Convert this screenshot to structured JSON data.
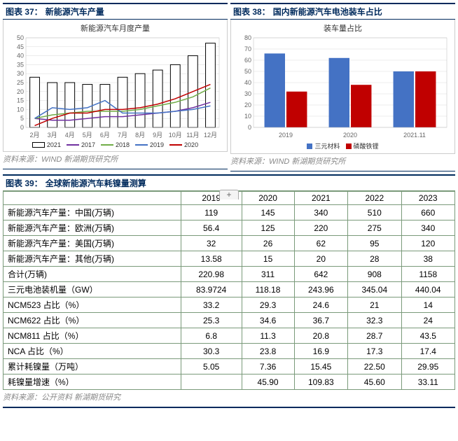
{
  "chart37": {
    "header_prefix": "图表 37：",
    "header_title": "新能源汽车产量",
    "chart_title": "新能源汽车月度产量",
    "source": "资料来源：WIND 新湖期货研究所",
    "type": "bar+line",
    "background_color": "#ffffff",
    "grid_color": "#d9d9d9",
    "ylim": [
      0,
      50
    ],
    "ytick_step": 5,
    "label_fontsize": 9,
    "categories": [
      "2月",
      "3月",
      "4月",
      "5月",
      "6月",
      "7月",
      "8月",
      "9月",
      "10月",
      "11月",
      "12月"
    ],
    "bar_series": {
      "name": "2021",
      "color": "#ffffff",
      "border": "#000000",
      "values": [
        28,
        25,
        25,
        24,
        24,
        28,
        30,
        32,
        35,
        40,
        47
      ]
    },
    "line_series": [
      {
        "name": "2017",
        "color": "#7030a0",
        "width": 1.5,
        "values": [
          5,
          4,
          4,
          5,
          6,
          6,
          7,
          8,
          9,
          11,
          14
        ]
      },
      {
        "name": "2018",
        "color": "#70ad47",
        "width": 1.5,
        "values": [
          5,
          7,
          8,
          9,
          9,
          9,
          10,
          12,
          14,
          17,
          22
        ]
      },
      {
        "name": "2019",
        "color": "#4472c4",
        "width": 1.5,
        "values": [
          5,
          11,
          10,
          11,
          15,
          8,
          8,
          8,
          9,
          10,
          12
        ]
      },
      {
        "name": "2020",
        "color": "#c00000",
        "width": 1.5,
        "values": [
          1,
          5,
          8,
          8,
          10,
          10,
          11,
          13,
          16,
          20,
          24
        ]
      }
    ]
  },
  "chart38": {
    "header_prefix": "图表 38：",
    "header_title": "国内新能源汽车电池装车占比",
    "chart_title": "装车量占比",
    "source": "资料来源：WIND 新湖期货研究所",
    "type": "bar",
    "background_color": "#ffffff",
    "grid_color": "#d9d9d9",
    "ylim": [
      0,
      80
    ],
    "ytick_step": 10,
    "label_fontsize": 9,
    "categories": [
      "2019",
      "2020",
      "2021.11"
    ],
    "series": [
      {
        "name": "三元材料",
        "color": "#4472c4",
        "values": [
          66,
          62,
          50
        ]
      },
      {
        "name": "磷酸铁锂",
        "color": "#c00000",
        "values": [
          32,
          38,
          50
        ]
      }
    ],
    "bar_width": 0.32
  },
  "table39": {
    "header_prefix": "图表 39：",
    "header_title": "全球新能源汽车耗镍量测算",
    "source": "资料来源：公开资料 新湖期货研究",
    "plus_label": "+",
    "border_color": "#7a9a7a",
    "fontsize": 12,
    "columns": [
      "",
      "2019",
      "2020",
      "2021",
      "2022",
      "2023"
    ],
    "rows": [
      [
        "新能源汽车产量：中国(万辆)",
        "119",
        "145",
        "340",
        "510",
        "660"
      ],
      [
        "新能源汽车产量：欧洲(万辆)",
        "56.4",
        "125",
        "220",
        "275",
        "340"
      ],
      [
        "新能源汽车产量：美国(万辆)",
        "32",
        "26",
        "62",
        "95",
        "120"
      ],
      [
        "新能源汽车产量：其他(万辆)",
        "13.58",
        "15",
        "20",
        "28",
        "38"
      ],
      [
        "合计(万辆)",
        "220.98",
        "311",
        "642",
        "908",
        "1158"
      ],
      [
        "三元电池装机量（GW）",
        "83.9724",
        "118.18",
        "243.96",
        "345.04",
        "440.04"
      ],
      [
        "NCM523 占比（%）",
        "33.2",
        "29.3",
        "24.6",
        "21",
        "14"
      ],
      [
        "NCM622 占比（%）",
        "25.3",
        "34.6",
        "36.7",
        "32.3",
        "24"
      ],
      [
        "NCM811 占比（%）",
        "6.8",
        "11.3",
        "20.8",
        "28.7",
        "43.5"
      ],
      [
        "NCA 占比（%）",
        "30.3",
        "23.8",
        "16.9",
        "17.3",
        "17.4"
      ],
      [
        "累计耗镍量（万吨）",
        "5.05",
        "7.36",
        "15.45",
        "22.50",
        "29.95"
      ],
      [
        "耗镍量增速（%）",
        "",
        "45.90",
        "109.83",
        "45.60",
        "33.11"
      ]
    ]
  }
}
